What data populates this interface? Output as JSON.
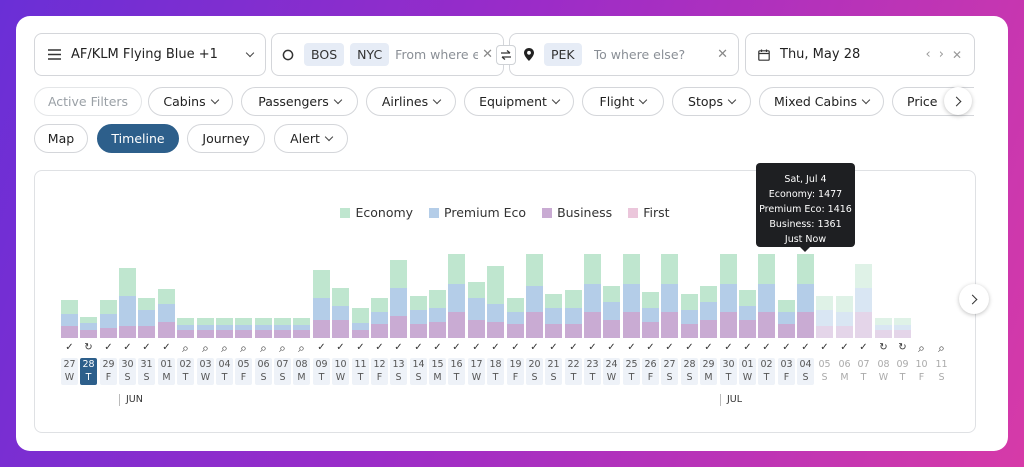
{
  "program": {
    "label": "AF/KLM Flying Blue +1"
  },
  "origin": {
    "chips": [
      "BOS",
      "NYC"
    ],
    "placeholder": "From where else?"
  },
  "destination": {
    "chips": [
      "PEK"
    ],
    "placeholder": "To where else?"
  },
  "date": {
    "label": "Thu, May 28"
  },
  "filters": [
    "Active Filters",
    "Cabins",
    "Passengers",
    "Airlines",
    "Equipment",
    "Flight",
    "Stops",
    "Mixed Cabins",
    "Price"
  ],
  "views": [
    "Map",
    "Timeline",
    "Journey",
    "Alert"
  ],
  "active_view": "Timeline",
  "legend": [
    {
      "name": "Economy",
      "color": "#bfe6cf"
    },
    {
      "name": "Premium Eco",
      "color": "#b4cde8"
    },
    {
      "name": "Business",
      "color": "#c9abd3"
    },
    {
      "name": "First",
      "color": "#ebc6db"
    }
  ],
  "tooltip": {
    "date": "Sat, Jul 4",
    "economy": "Economy: 1477",
    "premium": "Premium Eco: 1416",
    "business": "Business: 1361",
    "time": "Just Now"
  },
  "months": [
    {
      "label": "JUN",
      "at_index": 3
    },
    {
      "label": "JUL",
      "at_index": 34
    }
  ],
  "chart_data": {
    "type": "bar",
    "stacked": true,
    "series_names": [
      "Business",
      "Premium Eco",
      "Economy"
    ],
    "days": [
      {
        "d": "27",
        "w": "W",
        "s": "check",
        "b": 12,
        "p": 12,
        "e": 14
      },
      {
        "d": "28",
        "w": "T",
        "s": "sync",
        "b": 8,
        "p": 7,
        "e": 6,
        "selected": true
      },
      {
        "d": "29",
        "w": "F",
        "s": "check",
        "b": 10,
        "p": 14,
        "e": 14
      },
      {
        "d": "30",
        "w": "S",
        "s": "check",
        "b": 12,
        "p": 30,
        "e": 28
      },
      {
        "d": "31",
        "w": "S",
        "s": "check",
        "b": 12,
        "p": 16,
        "e": 12
      },
      {
        "d": "01",
        "w": "M",
        "s": "check",
        "b": 16,
        "p": 18,
        "e": 15
      },
      {
        "d": "02",
        "w": "T",
        "s": "search",
        "b": 8,
        "p": 5,
        "e": 7
      },
      {
        "d": "03",
        "w": "W",
        "s": "search",
        "b": 8,
        "p": 5,
        "e": 7
      },
      {
        "d": "04",
        "w": "T",
        "s": "search",
        "b": 8,
        "p": 5,
        "e": 7
      },
      {
        "d": "05",
        "w": "F",
        "s": "search",
        "b": 8,
        "p": 5,
        "e": 7
      },
      {
        "d": "06",
        "w": "S",
        "s": "search",
        "b": 8,
        "p": 5,
        "e": 7
      },
      {
        "d": "07",
        "w": "S",
        "s": "search",
        "b": 8,
        "p": 5,
        "e": 7
      },
      {
        "d": "08",
        "w": "M",
        "s": "search",
        "b": 8,
        "p": 5,
        "e": 7
      },
      {
        "d": "09",
        "w": "T",
        "s": "check",
        "b": 18,
        "p": 22,
        "e": 28
      },
      {
        "d": "10",
        "w": "W",
        "s": "check",
        "b": 18,
        "p": 14,
        "e": 18
      },
      {
        "d": "11",
        "w": "T",
        "s": "check",
        "b": 8,
        "p": 7,
        "e": 15
      },
      {
        "d": "12",
        "w": "F",
        "s": "check",
        "b": 14,
        "p": 12,
        "e": 14
      },
      {
        "d": "13",
        "w": "S",
        "s": "check",
        "b": 22,
        "p": 28,
        "e": 28
      },
      {
        "d": "14",
        "w": "S",
        "s": "check",
        "b": 14,
        "p": 14,
        "e": 14
      },
      {
        "d": "15",
        "w": "M",
        "s": "check",
        "b": 16,
        "p": 14,
        "e": 18
      },
      {
        "d": "16",
        "w": "T",
        "s": "check",
        "b": 26,
        "p": 28,
        "e": 30
      },
      {
        "d": "17",
        "w": "W",
        "s": "check",
        "b": 18,
        "p": 22,
        "e": 16
      },
      {
        "d": "18",
        "w": "T",
        "s": "check",
        "b": 16,
        "p": 18,
        "e": 38
      },
      {
        "d": "19",
        "w": "F",
        "s": "check",
        "b": 14,
        "p": 12,
        "e": 14
      },
      {
        "d": "20",
        "w": "S",
        "s": "check",
        "b": 26,
        "p": 26,
        "e": 32
      },
      {
        "d": "21",
        "w": "S",
        "s": "check",
        "b": 14,
        "p": 16,
        "e": 14
      },
      {
        "d": "22",
        "w": "T",
        "s": "check",
        "b": 14,
        "p": 16,
        "e": 18
      },
      {
        "d": "23",
        "w": "T",
        "s": "check",
        "b": 26,
        "p": 28,
        "e": 30
      },
      {
        "d": "24",
        "w": "W",
        "s": "check",
        "b": 18,
        "p": 18,
        "e": 16
      },
      {
        "d": "25",
        "w": "T",
        "s": "check",
        "b": 26,
        "p": 28,
        "e": 30
      },
      {
        "d": "26",
        "w": "F",
        "s": "check",
        "b": 16,
        "p": 14,
        "e": 16
      },
      {
        "d": "27",
        "w": "S",
        "s": "check",
        "b": 26,
        "p": 28,
        "e": 30
      },
      {
        "d": "28",
        "w": "S",
        "s": "check",
        "b": 14,
        "p": 14,
        "e": 16
      },
      {
        "d": "29",
        "w": "M",
        "s": "check",
        "b": 18,
        "p": 18,
        "e": 16
      },
      {
        "d": "30",
        "w": "T",
        "s": "check",
        "b": 26,
        "p": 28,
        "e": 30
      },
      {
        "d": "01",
        "w": "W",
        "s": "check",
        "b": 18,
        "p": 14,
        "e": 16
      },
      {
        "d": "02",
        "w": "T",
        "s": "check",
        "b": 26,
        "p": 28,
        "e": 30
      },
      {
        "d": "03",
        "w": "F",
        "s": "check",
        "b": 14,
        "p": 12,
        "e": 12
      },
      {
        "d": "04",
        "w": "S",
        "s": "check",
        "b": 26,
        "p": 28,
        "e": 30
      },
      {
        "d": "05",
        "w": "S",
        "s": "check",
        "b": 12,
        "p": 16,
        "e": 14,
        "future": true
      },
      {
        "d": "06",
        "w": "M",
        "s": "check",
        "b": 12,
        "p": 14,
        "e": 16,
        "future": true
      },
      {
        "d": "07",
        "w": "T",
        "s": "check",
        "b": 26,
        "p": 24,
        "e": 24,
        "future": true
      },
      {
        "d": "08",
        "w": "W",
        "s": "sync",
        "b": 8,
        "p": 5,
        "e": 7,
        "future": true
      },
      {
        "d": "09",
        "w": "T",
        "s": "sync",
        "b": 8,
        "p": 5,
        "e": 7,
        "future": true
      },
      {
        "d": "10",
        "w": "F",
        "s": "search",
        "b": 0,
        "p": 0,
        "e": 0,
        "future": true
      },
      {
        "d": "11",
        "w": "S",
        "s": "search",
        "b": 0,
        "p": 0,
        "e": 0,
        "future": true
      }
    ]
  }
}
